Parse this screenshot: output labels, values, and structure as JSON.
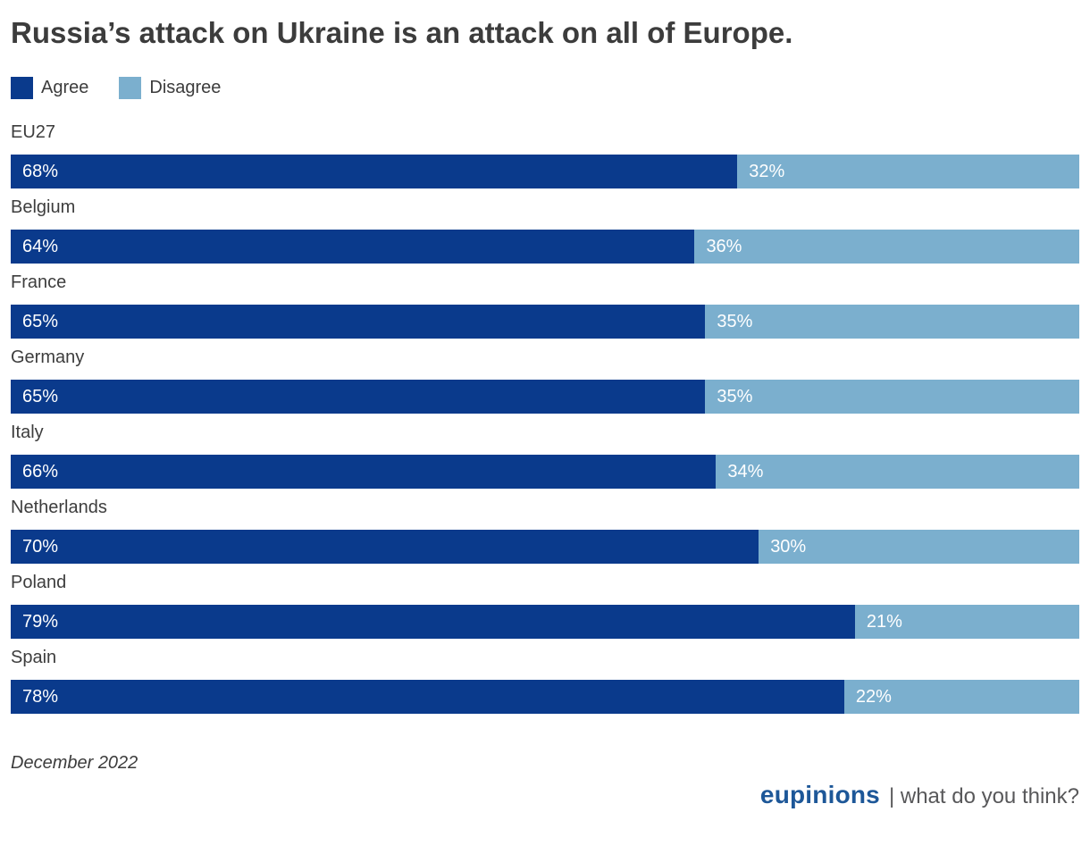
{
  "title": "Russia’s attack on Ukraine is an attack on all of Europe.",
  "legend": {
    "agree_label": "Agree",
    "disagree_label": "Disagree"
  },
  "colors": {
    "agree": "#0a3a8c",
    "disagree": "#7bafce",
    "value_text": "#ffffff",
    "logo_blue": "#1d5798"
  },
  "footnote": "December 2022",
  "branding": {
    "logo": "eupinions",
    "tagline": "| what do you think?"
  },
  "chart_data": {
    "type": "bar",
    "orientation": "horizontal",
    "stacked": true,
    "title": "Russia’s attack on Ukraine is an attack on all of Europe.",
    "categories": [
      "EU27",
      "Belgium",
      "France",
      "Germany",
      "Italy",
      "Netherlands",
      "Poland",
      "Spain"
    ],
    "series": [
      {
        "name": "Agree",
        "color": "#0a3a8c",
        "values": [
          68,
          64,
          65,
          65,
          66,
          70,
          79,
          78
        ]
      },
      {
        "name": "Disagree",
        "color": "#7bafce",
        "values": [
          32,
          36,
          35,
          35,
          34,
          30,
          21,
          22
        ]
      }
    ],
    "value_suffix": "%",
    "xlim": [
      0,
      100
    ],
    "grid": false,
    "legend_position": "top-left",
    "value_labels": "inside-start"
  }
}
